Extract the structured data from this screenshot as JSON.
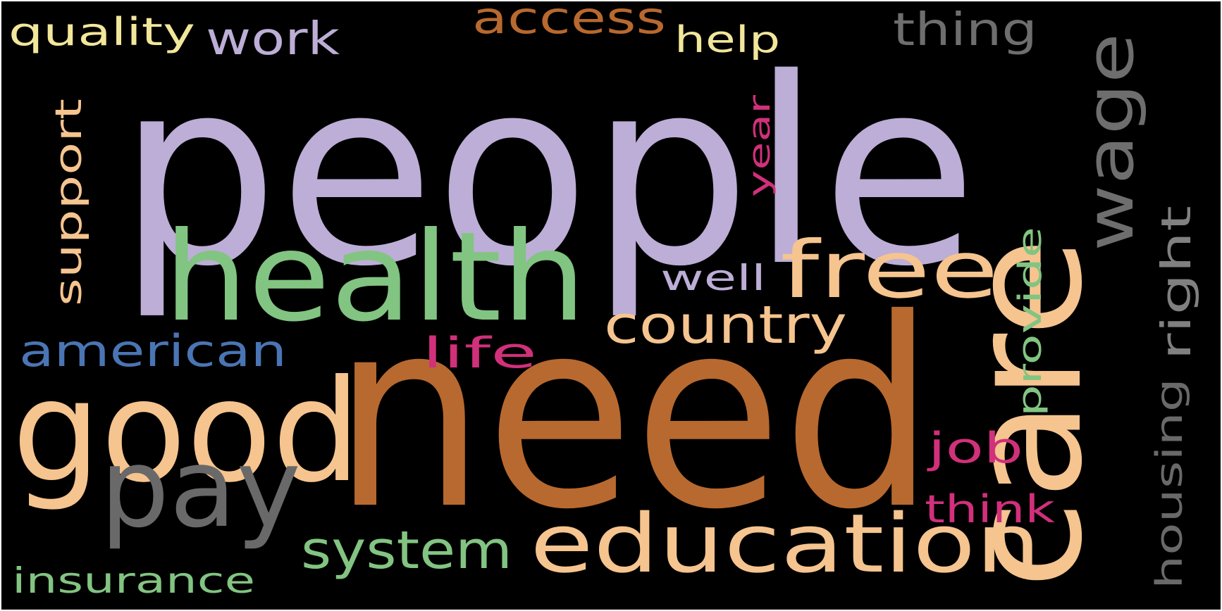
{
  "words": [
    {
      "text": "people",
      "color": "#bcaed6"
    },
    {
      "text": "need",
      "color": "#b8692f"
    },
    {
      "text": "care",
      "color": "#f5c48f"
    },
    {
      "text": "health",
      "color": "#82c482"
    },
    {
      "text": "good",
      "color": "#f5c48f"
    },
    {
      "text": "pay",
      "color": "#696969"
    },
    {
      "text": "education",
      "color": "#f5c48f"
    },
    {
      "text": "wage",
      "color": "#6e6e6e"
    },
    {
      "text": "free",
      "color": "#f5c48f"
    },
    {
      "text": "country",
      "color": "#f5c48f"
    },
    {
      "text": "system",
      "color": "#82c482"
    },
    {
      "text": "american",
      "color": "#4a75b4"
    },
    {
      "text": "access",
      "color": "#b8692f"
    },
    {
      "text": "work",
      "color": "#bcaed6"
    },
    {
      "text": "quality",
      "color": "#f2e69a"
    },
    {
      "text": "help",
      "color": "#f2e69a"
    },
    {
      "text": "thing",
      "color": "#6e6e6e"
    },
    {
      "text": "support",
      "color": "#f5c48f"
    },
    {
      "text": "year",
      "color": "#d1307b"
    },
    {
      "text": "well",
      "color": "#bcaed6"
    },
    {
      "text": "right",
      "color": "#808080"
    },
    {
      "text": "life",
      "color": "#d1307b"
    },
    {
      "text": "provide",
      "color": "#82c482"
    },
    {
      "text": "housing",
      "color": "#696969"
    },
    {
      "text": "job",
      "color": "#d1307b"
    },
    {
      "text": "think",
      "color": "#d1307b"
    },
    {
      "text": "insurance",
      "color": "#82c482"
    }
  ]
}
